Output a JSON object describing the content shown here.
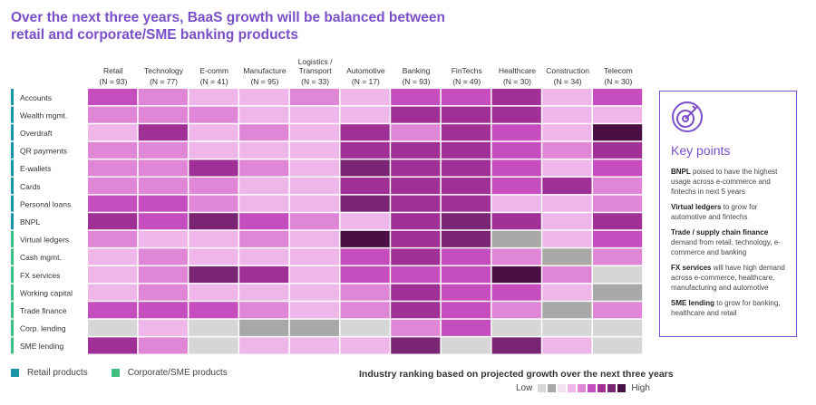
{
  "title": "Over the next three years, BaaS growth will be balanced between retail and corporate/SME banking products",
  "legend": {
    "retail_label": "Retail products",
    "retail_color": "#1a94a8",
    "corporate_label": "Corporate/SME products",
    "corporate_color": "#3fbf7f"
  },
  "scale": {
    "title": "Industry ranking based on projected growth over the next three years",
    "low": "Low",
    "high": "High",
    "colors": [
      "#d6d6d6",
      "#a8a8a8",
      "#f5e0f2",
      "#efb7e9",
      "#df86d6",
      "#c54dbd",
      "#a03096",
      "#7a2474",
      "#4a0f44"
    ]
  },
  "chart_data": {
    "type": "heatmap",
    "columns": [
      {
        "name": "Retail",
        "n": "(N = 93)"
      },
      {
        "name": "Technology",
        "n": "(N = 77)"
      },
      {
        "name": "E-comm",
        "n": "(N = 41)"
      },
      {
        "name": "Manufacture",
        "n": "(N = 95)"
      },
      {
        "name": "Logistics /\nTransport",
        "n": "(N = 33)"
      },
      {
        "name": "Automotive",
        "n": "(N = 17)"
      },
      {
        "name": "Banking",
        "n": "(N = 93)"
      },
      {
        "name": "FinTechs",
        "n": "(N = 49)"
      },
      {
        "name": "Healthcare",
        "n": "(N = 30)"
      },
      {
        "name": "Construction",
        "n": "(N = 34)"
      },
      {
        "name": "Telecom",
        "n": "(N = 30)"
      }
    ],
    "rows": [
      {
        "name": "Accounts",
        "group": "retail"
      },
      {
        "name": "Wealth mgmt.",
        "group": "retail"
      },
      {
        "name": "Overdraft",
        "group": "retail"
      },
      {
        "name": "QR payments",
        "group": "retail"
      },
      {
        "name": "E-wallets",
        "group": "retail"
      },
      {
        "name": "Cards",
        "group": "retail"
      },
      {
        "name": "Personal loans",
        "group": "retail"
      },
      {
        "name": "BNPL",
        "group": "retail"
      },
      {
        "name": "Virtual ledgers",
        "group": "corporate"
      },
      {
        "name": "Cash mgmt.",
        "group": "corporate"
      },
      {
        "name": "FX services",
        "group": "corporate"
      },
      {
        "name": "Working capital",
        "group": "corporate"
      },
      {
        "name": "Trade finance",
        "group": "corporate"
      },
      {
        "name": "Corp. lending",
        "group": "corporate"
      },
      {
        "name": "SME lending",
        "group": "corporate"
      }
    ],
    "levels": [
      [
        5,
        4,
        3,
        3,
        4,
        3,
        5,
        5,
        6,
        3,
        5
      ],
      [
        4,
        4,
        4,
        3,
        3,
        3,
        6,
        6,
        6,
        3,
        3
      ],
      [
        3,
        6,
        3,
        4,
        3,
        6,
        4,
        6,
        5,
        3,
        8
      ],
      [
        4,
        4,
        3,
        3,
        3,
        6,
        6,
        6,
        5,
        4,
        6
      ],
      [
        4,
        4,
        6,
        4,
        3,
        7,
        6,
        6,
        5,
        3,
        5
      ],
      [
        4,
        4,
        4,
        3,
        3,
        6,
        6,
        6,
        5,
        6,
        4
      ],
      [
        5,
        5,
        4,
        3,
        3,
        7,
        6,
        6,
        3,
        3,
        4
      ],
      [
        6,
        5,
        7,
        5,
        4,
        3,
        6,
        7,
        6,
        3,
        6
      ],
      [
        4,
        3,
        3,
        4,
        3,
        8,
        6,
        7,
        1,
        3,
        5
      ],
      [
        3,
        4,
        3,
        3,
        3,
        5,
        6,
        5,
        4,
        1,
        4
      ],
      [
        3,
        4,
        7,
        6,
        3,
        5,
        5,
        5,
        8,
        4,
        0
      ],
      [
        3,
        4,
        3,
        3,
        3,
        4,
        6,
        5,
        5,
        3,
        1
      ],
      [
        5,
        5,
        5,
        4,
        3,
        4,
        6,
        5,
        4,
        1,
        4
      ],
      [
        0,
        3,
        0,
        1,
        1,
        0,
        4,
        5,
        0,
        0,
        0
      ],
      [
        6,
        4,
        0,
        3,
        3,
        3,
        7,
        0,
        7,
        3,
        0
      ]
    ]
  },
  "key_points": {
    "title": "Key points",
    "items": [
      {
        "bold": "BNPL",
        "text": " poised to have the highest usage across e-commerce and fintechs in next 5 years"
      },
      {
        "bold": "Virtual ledgers",
        "text": " to grow for automotive and fintechs"
      },
      {
        "bold": "Trade / supply chain finance",
        "text": " demand from retail, technology, e-commerce and banking"
      },
      {
        "bold": "FX services",
        "text": " will have high demand across e-commerce, healthcare, manufacturing and automotive"
      },
      {
        "bold": "SME lending",
        "text": " to grow for banking, healthcare and retail"
      }
    ]
  }
}
